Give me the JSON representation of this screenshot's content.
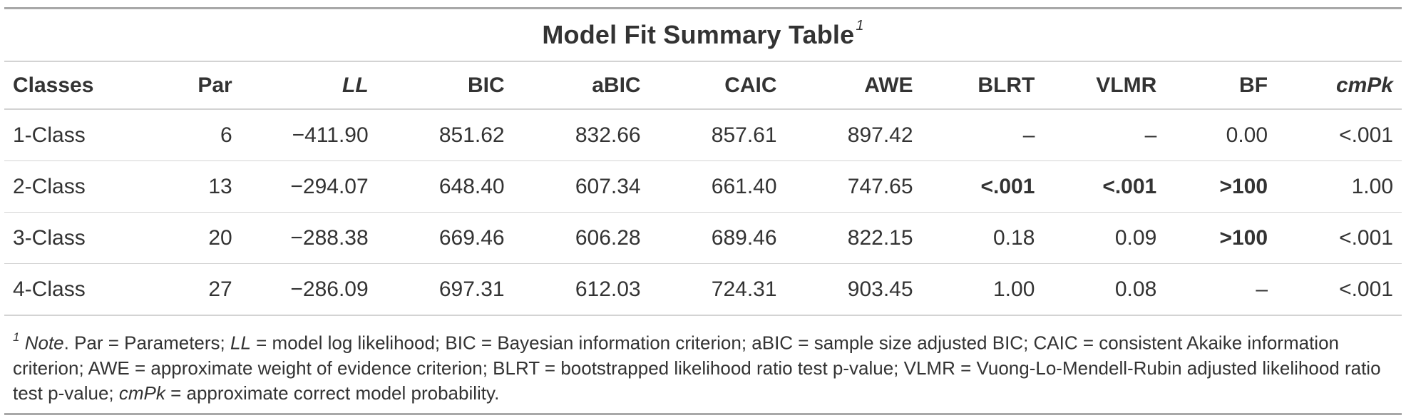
{
  "title": "Model Fit Summary Table",
  "title_footnote_mark": "1",
  "columns": [
    {
      "label": "Classes",
      "italic": false
    },
    {
      "label": "Par",
      "italic": false
    },
    {
      "label": "LL",
      "italic": true
    },
    {
      "label": "BIC",
      "italic": false
    },
    {
      "label": "aBIC",
      "italic": false
    },
    {
      "label": "CAIC",
      "italic": false
    },
    {
      "label": "AWE",
      "italic": false
    },
    {
      "label": "BLRT",
      "italic": false
    },
    {
      "label": "VLMR",
      "italic": false
    },
    {
      "label": "BF",
      "italic": false
    },
    {
      "label": "cmPk",
      "italic": true
    }
  ],
  "rows": [
    {
      "cells": [
        "1-Class",
        "6",
        "−411.90",
        "851.62",
        "832.66",
        "857.61",
        "897.42",
        "–",
        "–",
        "0.00",
        "<.001"
      ],
      "bold": []
    },
    {
      "cells": [
        "2-Class",
        "13",
        "−294.07",
        "648.40",
        "607.34",
        "661.40",
        "747.65",
        "<.001",
        "<.001",
        ">100",
        "1.00"
      ],
      "bold": [
        7,
        8,
        9
      ]
    },
    {
      "cells": [
        "3-Class",
        "20",
        "−288.38",
        "669.46",
        "606.28",
        "689.46",
        "822.15",
        "0.18",
        "0.09",
        ">100",
        "<.001"
      ],
      "bold": [
        9
      ]
    },
    {
      "cells": [
        "4-Class",
        "27",
        "−286.09",
        "697.31",
        "612.03",
        "724.31",
        "903.45",
        "1.00",
        "0.08",
        "–",
        "<.001"
      ],
      "bold": []
    }
  ],
  "note": {
    "mark": "1",
    "label": "Note",
    "segments": [
      {
        "text": ". Par = Parameters; ",
        "italic": false
      },
      {
        "text": "LL",
        "italic": true
      },
      {
        "text": " = model log likelihood; BIC = Bayesian information criterion; aBIC = sample size adjusted BIC; CAIC = consistent Akaike information criterion; AWE = approximate weight of evidence criterion; BLRT = bootstrapped likelihood ratio test p-value; VLMR = Vuong-Lo-Mendell-Rubin adjusted likelihood ratio test p-value; ",
        "italic": false
      },
      {
        "text": "cmPk",
        "italic": true
      },
      {
        "text": " = approximate correct model probability.",
        "italic": false
      }
    ]
  }
}
